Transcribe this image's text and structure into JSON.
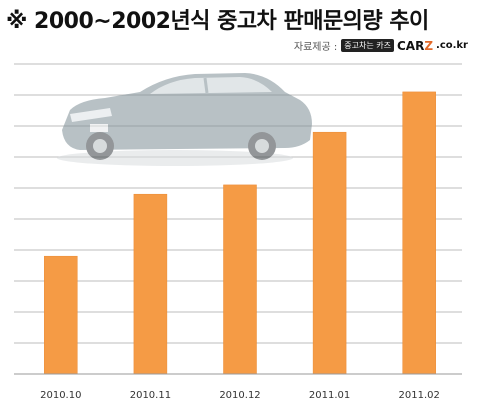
{
  "title": "※ 2000~2002년식 중고차 판매문의량 추이",
  "source": {
    "label": "자료제공 :",
    "brand_tag": "중고차는 카즈",
    "brand_main": "CAR",
    "brand_main_highlight": "Z",
    "brand_suffix": ".co.kr"
  },
  "colors": {
    "bar": "#f59b45",
    "bar_edge": "#e98a33",
    "grid": "#bdbdbd"
  },
  "chart_data": {
    "type": "bar",
    "categories": [
      "2010.10",
      "2010.11",
      "2010.12",
      "2011.01",
      "2011.02"
    ],
    "values": [
      38,
      58,
      61,
      78,
      91
    ],
    "ylim": [
      0,
      100
    ],
    "grid": true,
    "title": "※ 2000~2002년식 중고차 판매문의량 추이",
    "xlabel": "",
    "ylabel": ""
  }
}
